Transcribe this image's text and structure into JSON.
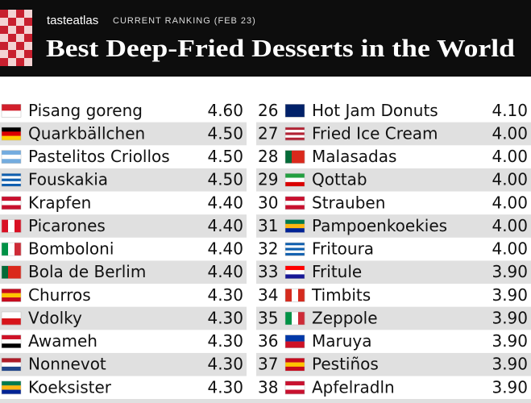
{
  "header": {
    "brand": "tasteatlas",
    "subtitle": "CURRENT RANKING (FEB 23)",
    "title": "Best Deep-Fried Desserts in the World"
  },
  "left_rows": [
    {
      "name": "Pisang goreng",
      "score": "4.60"
    },
    {
      "name": "Quarkbällchen",
      "score": "4.50"
    },
    {
      "name": "Pastelitos Criollos",
      "score": "4.50"
    },
    {
      "name": "Fouskakia",
      "score": "4.50"
    },
    {
      "name": "Krapfen",
      "score": "4.40"
    },
    {
      "name": "Picarones",
      "score": "4.40"
    },
    {
      "name": "Bomboloni",
      "score": "4.40"
    },
    {
      "name": "Bola de Berlim",
      "score": "4.40"
    },
    {
      "name": "Churros",
      "score": "4.30"
    },
    {
      "name": "Vdolky",
      "score": "4.30"
    },
    {
      "name": "Awameh",
      "score": "4.30"
    },
    {
      "name": "Nonnevot",
      "score": "4.30"
    },
    {
      "name": "Koeksister",
      "score": "4.30"
    }
  ],
  "right_rows": [
    {
      "rank": "26",
      "name": "Hot Jam Donuts",
      "score": "4.10"
    },
    {
      "rank": "27",
      "name": "Fried Ice Cream",
      "score": "4.00"
    },
    {
      "rank": "28",
      "name": "Malasadas",
      "score": "4.00"
    },
    {
      "rank": "29",
      "name": "Qottab",
      "score": "4.00"
    },
    {
      "rank": "30",
      "name": "Strauben",
      "score": "4.00"
    },
    {
      "rank": "31",
      "name": "Pampoenkoekies",
      "score": "4.00"
    },
    {
      "rank": "32",
      "name": "Fritoura",
      "score": "4.00"
    },
    {
      "rank": "33",
      "name": "Fritule",
      "score": "3.90"
    },
    {
      "rank": "34",
      "name": "Timbits",
      "score": "3.90"
    },
    {
      "rank": "35",
      "name": "Zeppole",
      "score": "3.90"
    },
    {
      "rank": "36",
      "name": "Maruya",
      "score": "3.90"
    },
    {
      "rank": "37",
      "name": "Pestiños",
      "score": "3.90"
    },
    {
      "rank": "38",
      "name": "Apfelradln",
      "score": "3.90"
    }
  ]
}
